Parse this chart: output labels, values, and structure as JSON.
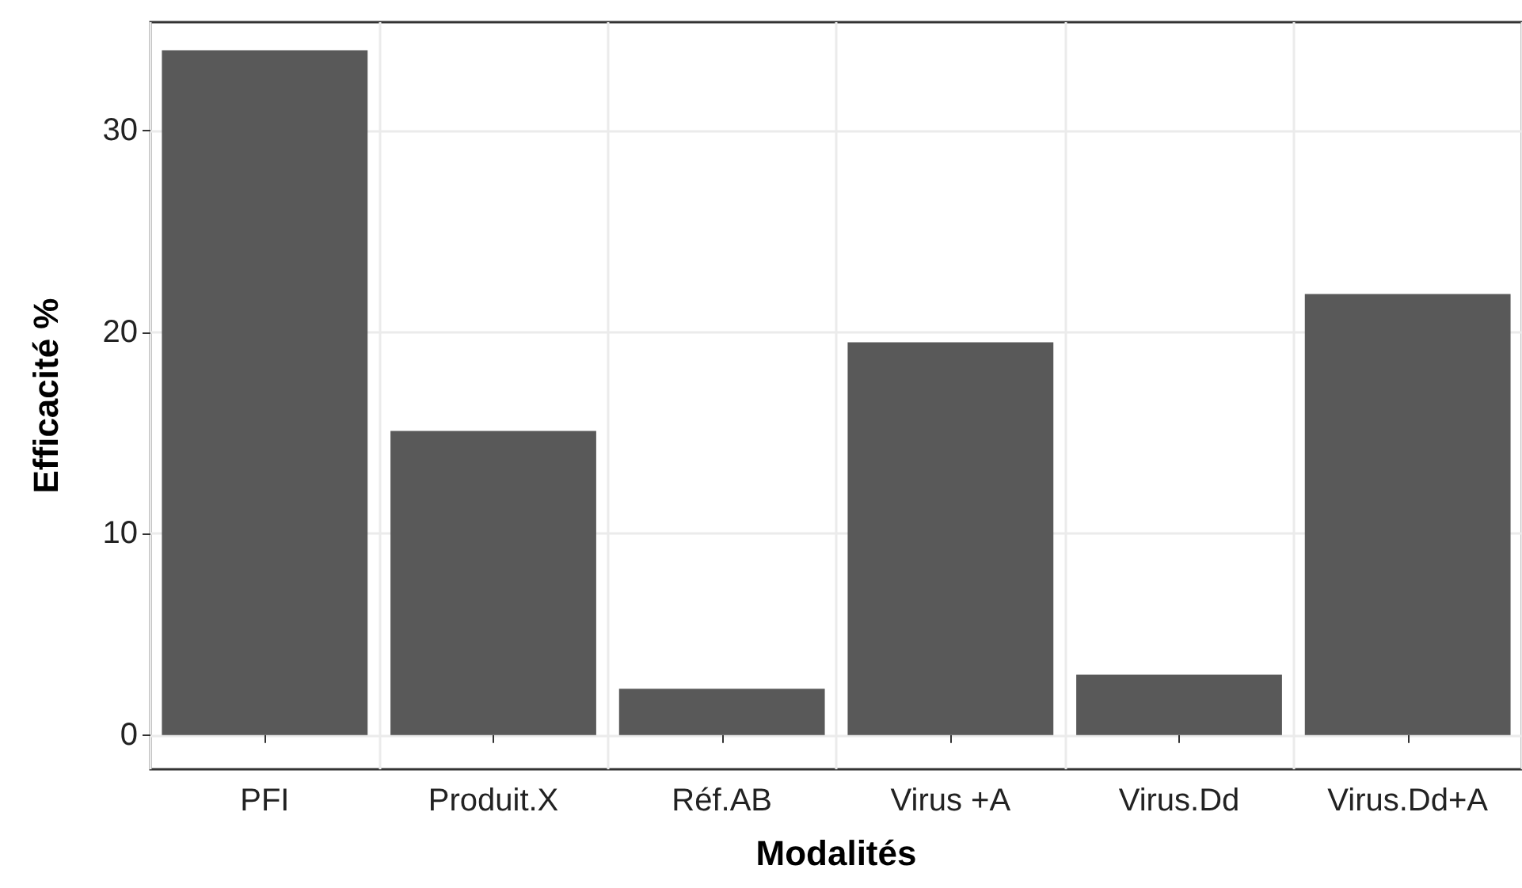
{
  "chart_data": {
    "type": "bar",
    "xlabel": "Modalités",
    "ylabel": "Efficacité %",
    "categories": [
      "PFI",
      "Produit.X",
      "Réf.AB",
      "Virus +A",
      "Virus.Dd",
      "Virus.Dd+A"
    ],
    "values": [
      34,
      15.1,
      2.3,
      19.5,
      3.0,
      21.9
    ],
    "color": "#595959",
    "ylim": [
      -1.7,
      35.4
    ],
    "yticks": [
      0,
      10,
      20,
      30
    ],
    "grid": true
  }
}
